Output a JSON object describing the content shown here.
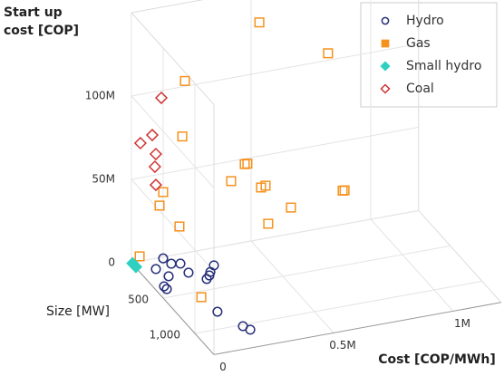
{
  "chart_data": {
    "type": "scatter3d",
    "x_label": "Cost [COP/MWh]",
    "y_label": "Size [MW]",
    "z_label": "Start up cost [COP]",
    "xlim": [
      0,
      1200000
    ],
    "ylim": [
      0,
      1300
    ],
    "zlim": [
      0,
      150000000
    ],
    "xticks": [
      0,
      {
        "value": 500000,
        "label": "0.5M"
      },
      {
        "value": 1000000,
        "label": "1M"
      }
    ],
    "yticks": [
      500,
      {
        "value": 1000,
        "label": "1,000"
      }
    ],
    "zticks": [
      0,
      {
        "value": 50000000,
        "label": "50M"
      },
      {
        "value": 100000000,
        "label": "100M"
      }
    ],
    "grid": true,
    "legend": "top-right",
    "series": [
      {
        "name": "Hydro",
        "color": "#27307a",
        "marker": "circle",
        "filled": false,
        "x": [
          128000,
          140000,
          67500,
          90000,
          173000,
          173000,
          254000,
          288000,
          218000,
          239000,
          41000,
          42000,
          151000,
          196000,
          211000
        ],
        "y": [
          17,
          100,
          131,
          247,
          119,
          247,
          286,
          214,
          364,
          327,
          359,
          399,
          786,
          1018,
          1077
        ],
        "z": [
          0,
          0,
          0,
          0,
          0,
          0,
          0,
          0,
          0,
          0,
          0,
          0,
          0,
          0,
          0
        ]
      },
      {
        "name": "Gas",
        "color": "#f5921e",
        "marker": "square",
        "filled": false,
        "x": [
          455000,
          742000,
          144000,
          133000,
          394000,
          405000,
          337000,
          481000,
          462000,
          811000,
          803000,
          53000,
          38000,
          587000,
          121000,
          492000,
          21000,
          133000
        ],
        "y": [
          300,
          300,
          300,
          300,
          300,
          300,
          300,
          300,
          300,
          300,
          300,
          300,
          300,
          300,
          300,
          300,
          50,
          600
        ],
        "z": [
          145000000,
          119000000,
          118000000,
          85000000,
          61600000,
          61600000,
          52900000,
          46400000,
          45800000,
          35000000,
          35000000,
          53700000,
          46000000,
          30500000,
          31300000,
          23300000,
          5400000,
          1300000
        ]
      },
      {
        "name": "Small hydro",
        "color": "#2fd0c0",
        "marker": "diamond",
        "filled": true,
        "x": [
          2000,
          3000
        ],
        "y": [
          10,
          60
        ],
        "z": [
          0,
          0
        ]
      },
      {
        "name": "Coal",
        "color": "#d03434",
        "marker": "diamond",
        "filled": false,
        "x": [
          72000,
          34000,
          11000,
          49000,
          45000,
          49000
        ],
        "y": [
          200,
          200,
          100,
          200,
          200,
          200
        ],
        "z": [
          105500000,
          84200000,
          75700000,
          72400000,
          64900000,
          53900000
        ]
      }
    ]
  }
}
